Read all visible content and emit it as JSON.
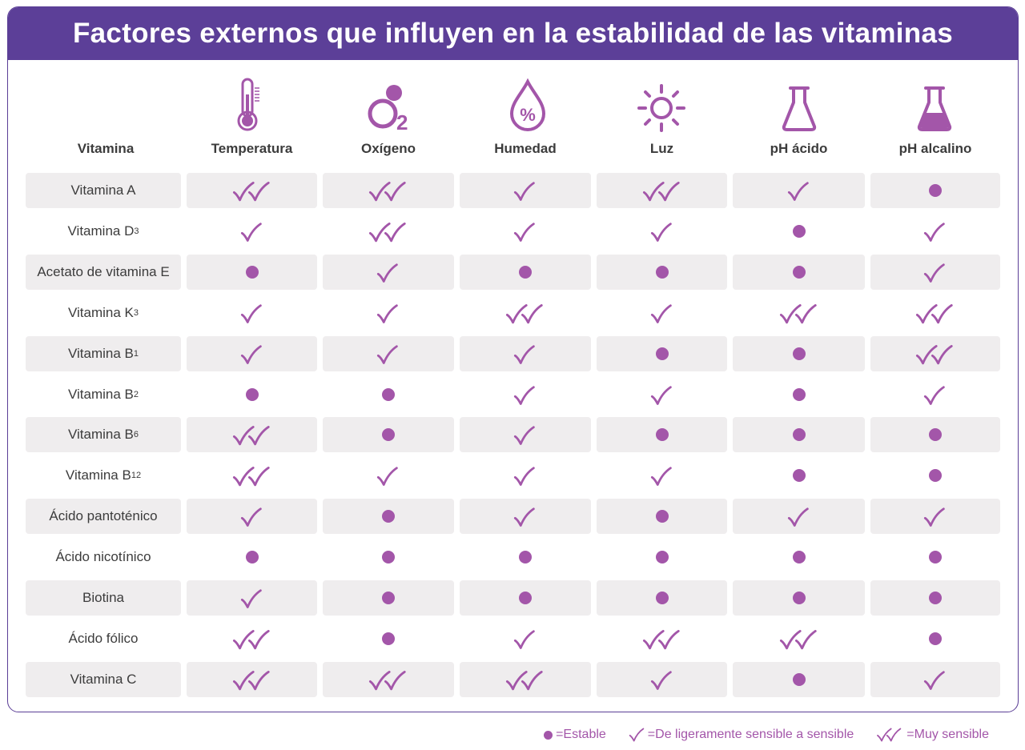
{
  "title": "Factores externos que influyen en la estabilidad de las vitaminas",
  "colors": {
    "purple_header": "#5c3f98",
    "accent": "#a356a9",
    "row_shade": "#efedee"
  },
  "header": {
    "vitamin_label": "Vitamina",
    "factors": [
      {
        "label": "Temperatura",
        "icon": "thermometer-icon"
      },
      {
        "label": "Oxígeno",
        "icon": "oxygen-icon"
      },
      {
        "label": "Humedad",
        "icon": "humidity-drop-icon"
      },
      {
        "label": "Luz",
        "icon": "sun-icon"
      },
      {
        "label": "pH ácido",
        "icon": "flask-empty-icon"
      },
      {
        "label": "pH alcalino",
        "icon": "flask-filled-icon"
      }
    ]
  },
  "rows": [
    {
      "name": "Vitamina A",
      "sub": "",
      "values": [
        2,
        2,
        1,
        2,
        1,
        0
      ]
    },
    {
      "name": "Vitamina D",
      "sub": "3",
      "values": [
        1,
        2,
        1,
        1,
        0,
        1
      ]
    },
    {
      "name": "Acetato de vitamina E",
      "sub": "",
      "values": [
        0,
        1,
        0,
        0,
        0,
        1
      ]
    },
    {
      "name": "Vitamina K",
      "sub": "3",
      "values": [
        1,
        1,
        2,
        1,
        2,
        2
      ]
    },
    {
      "name": "Vitamina B",
      "sub": "1",
      "values": [
        1,
        1,
        1,
        0,
        0,
        2
      ]
    },
    {
      "name": "Vitamina B",
      "sub": "2",
      "values": [
        0,
        0,
        1,
        1,
        0,
        1
      ]
    },
    {
      "name": "Vitamina B",
      "sub": "6",
      "values": [
        2,
        0,
        1,
        0,
        0,
        0
      ]
    },
    {
      "name": "Vitamina B",
      "sub": "12",
      "values": [
        2,
        1,
        1,
        1,
        0,
        0
      ]
    },
    {
      "name": "Ácido pantoténico",
      "sub": "",
      "values": [
        1,
        0,
        1,
        0,
        1,
        1
      ]
    },
    {
      "name": "Ácido nicotínico",
      "sub": "",
      "values": [
        0,
        0,
        0,
        0,
        0,
        0
      ]
    },
    {
      "name": "Biotina",
      "sub": "",
      "values": [
        1,
        0,
        0,
        0,
        0,
        0
      ]
    },
    {
      "name": "Ácido fólico",
      "sub": "",
      "values": [
        2,
        0,
        1,
        2,
        2,
        0
      ]
    },
    {
      "name": "Vitamina C",
      "sub": "",
      "values": [
        2,
        2,
        2,
        1,
        0,
        1
      ]
    }
  ],
  "legend": {
    "stable": "=Estable",
    "sensitive": "=De ligeramente sensible a sensible",
    "very_sensitive": "=Muy sensible"
  }
}
